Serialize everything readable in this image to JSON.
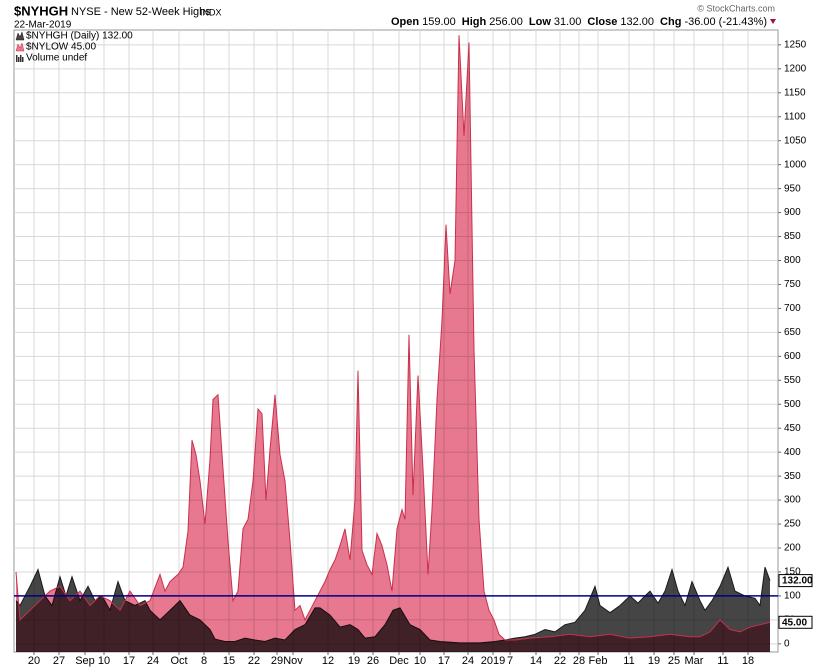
{
  "chart_data": {
    "type": "area",
    "symbol": "$NYHGH",
    "title": "NYSE - New 52-Week Highs",
    "exchange": "INDX",
    "date": "22-Mar-2019",
    "credit": "© StockCharts.com",
    "quote": [
      {
        "label": "Open",
        "value": "159.00"
      },
      {
        "label": "High",
        "value": "256.00"
      },
      {
        "label": "Low",
        "value": "31.00"
      },
      {
        "label": "Close",
        "value": "132.00"
      },
      {
        "label": "Chg",
        "value": "-36.00 (-21.43%)"
      }
    ],
    "legend_extra": "Volume undef",
    "series": [
      {
        "name": "$NYLOW 45.00",
        "color": "#e8788f",
        "line": "#c8304a",
        "last": 45,
        "last_label": "45.00",
        "x": [
          0,
          0.8,
          2.8,
          4.8,
          6.8,
          8.8,
          10.8,
          12.8,
          14.8,
          16.8,
          18.8,
          20.8,
          22.8,
          24.8,
          26.8,
          28.8,
          29.8,
          30.8,
          32.4,
          33.4,
          34.4,
          35.2,
          36,
          36.8,
          37.8,
          38.8,
          39.4,
          40.4,
          41.4,
          42.4,
          43.4,
          44.4,
          45.4,
          46.4,
          47.4,
          48.4,
          49.2,
          50,
          50.8,
          51.8,
          52.8,
          53.8,
          54.8,
          55.8,
          56.8,
          57.8,
          58.8,
          59.8,
          60.8,
          61.8,
          62.8,
          63.8,
          64.8,
          65.8,
          66.8,
          67.8,
          68.4,
          69.2,
          70.2,
          71.2,
          72.2,
          73.2,
          74.2,
          75.2,
          76.2,
          77.2,
          77.8,
          78.6,
          79.4,
          80.4,
          81.4,
          82.4,
          83.2,
          84.2,
          85.2,
          86,
          86.8,
          87.8,
          88.6,
          89.6,
          90.6,
          91.6,
          92.6,
          93.6,
          94.6,
          95.6,
          96.6,
          97.8,
          99.8,
          102.8,
          106.8,
          110.8,
          114.8,
          118.8,
          122.8,
          126.8,
          130.8,
          134.8,
          136.8,
          138.8,
          140.8,
          142.8,
          144.8,
          146.8,
          148.8,
          150.8
        ],
        "values": [
          150,
          50,
          70,
          90,
          110,
          120,
          90,
          110,
          80,
          100,
          90,
          70,
          110,
          80,
          90,
          145,
          110,
          130,
          145,
          160,
          235,
          425,
          395,
          340,
          250,
          385,
          510,
          520,
          365,
          215,
          90,
          110,
          240,
          260,
          340,
          490,
          480,
          300,
          405,
          520,
          395,
          340,
          215,
          70,
          80,
          50,
          70,
          90,
          110,
          130,
          155,
          175,
          205,
          240,
          175,
          300,
          570,
          195,
          165,
          145,
          230,
          205,
          165,
          110,
          240,
          280,
          260,
          645,
          310,
          560,
          365,
          145,
          280,
          510,
          675,
          875,
          730,
          800,
          1270,
          1060,
          1255,
          615,
          260,
          110,
          70,
          50,
          20,
          8,
          8,
          12,
          15,
          20,
          15,
          20,
          12,
          15,
          20,
          15,
          15,
          25,
          50,
          30,
          25,
          35,
          40,
          45
        ]
      },
      {
        "name": "$NYHGH (Daily) 132.00",
        "color": "#454545",
        "line": "#1a1a1a",
        "last": 132,
        "last_label": "132.00",
        "x": [
          0,
          0.8,
          2.8,
          4.4,
          5.8,
          7.2,
          8.8,
          10,
          11.2,
          12.8,
          14.4,
          15.8,
          17.2,
          18.8,
          20.4,
          21.8,
          23.8,
          25.8,
          26.8,
          28.8,
          30.8,
          32.8,
          34.8,
          36.8,
          38.8,
          39.8,
          41.8,
          43.8,
          45.8,
          47.8,
          49.8,
          51.8,
          53.8,
          55.8,
          57.8,
          59.8,
          60.8,
          62.8,
          64.8,
          66.8,
          68.4,
          69.8,
          71.8,
          73.8,
          75.4,
          76.8,
          78.8,
          80.8,
          82.8,
          84.8,
          88.8,
          92.8,
          95.8,
          97.8,
          99.8,
          101.8,
          103.8,
          105.8,
          107.8,
          109.8,
          111.8,
          113.8,
          115.8,
          116.8,
          118.8,
          120.8,
          122.8,
          124.4,
          125.8,
          126.8,
          128.4,
          129.8,
          131.2,
          132.4,
          133.8,
          135.2,
          136.8,
          137.8,
          139.2,
          140.8,
          142.4,
          143.8,
          145.8,
          147.8,
          148.8,
          149.8,
          150.8
        ],
        "values": [
          90,
          80,
          120,
          155,
          100,
          80,
          140,
          100,
          140,
          90,
          120,
          90,
          100,
          70,
          130,
          90,
          80,
          90,
          70,
          50,
          70,
          90,
          60,
          50,
          30,
          10,
          5,
          5,
          12,
          8,
          5,
          12,
          8,
          30,
          40,
          75,
          75,
          60,
          35,
          40,
          30,
          12,
          15,
          40,
          70,
          75,
          40,
          30,
          8,
          5,
          2,
          2,
          5,
          8,
          12,
          15,
          20,
          30,
          25,
          40,
          45,
          70,
          120,
          80,
          65,
          80,
          100,
          85,
          100,
          110,
          85,
          110,
          155,
          110,
          80,
          130,
          90,
          70,
          90,
          120,
          160,
          110,
          100,
          95,
          80,
          160,
          132
        ]
      }
    ],
    "hline": {
      "value": 100,
      "color": "#000080"
    },
    "xlim": [
      -0.4,
      152.4
    ],
    "xticks": [
      {
        "value": 3.6,
        "label": "20"
      },
      {
        "value": 8.6,
        "label": "27"
      },
      {
        "value": 13.8,
        "label": "Sep"
      },
      {
        "value": 17.6,
        "label": "10"
      },
      {
        "value": 22.6,
        "label": "17"
      },
      {
        "value": 27.4,
        "label": "24"
      },
      {
        "value": 32.6,
        "label": "Oct"
      },
      {
        "value": 37.6,
        "label": "8"
      },
      {
        "value": 42.6,
        "label": "15"
      },
      {
        "value": 47.6,
        "label": "22"
      },
      {
        "value": 52.2,
        "label": "29"
      },
      {
        "value": 55.4,
        "label": "Nov"
      },
      {
        "value": 62.4,
        "label": "12"
      },
      {
        "value": 67.6,
        "label": "19"
      },
      {
        "value": 71.4,
        "label": "26"
      },
      {
        "value": 76.6,
        "label": "Dec"
      },
      {
        "value": 80.8,
        "label": "10"
      },
      {
        "value": 85.6,
        "label": "17"
      },
      {
        "value": 90.4,
        "label": "24"
      },
      {
        "value": 95.4,
        "label": "2019"
      },
      {
        "value": 98.8,
        "label": "7"
      },
      {
        "value": 104,
        "label": "14"
      },
      {
        "value": 108.8,
        "label": "22"
      },
      {
        "value": 112.6,
        "label": "28"
      },
      {
        "value": 116.4,
        "label": "Feb"
      },
      {
        "value": 122.6,
        "label": "11"
      },
      {
        "value": 127.6,
        "label": "19"
      },
      {
        "value": 131.6,
        "label": "25"
      },
      {
        "value": 135.6,
        "label": "Mar"
      },
      {
        "value": 141.4,
        "label": "11"
      },
      {
        "value": 146.4,
        "label": "18"
      }
    ],
    "ylim": [
      -17,
      1281
    ],
    "yticks": [
      0,
      50,
      100,
      150,
      200,
      250,
      300,
      350,
      400,
      450,
      500,
      550,
      600,
      650,
      700,
      750,
      800,
      850,
      900,
      950,
      1000,
      1050,
      1100,
      1150,
      1200,
      1250
    ],
    "grid": true
  }
}
